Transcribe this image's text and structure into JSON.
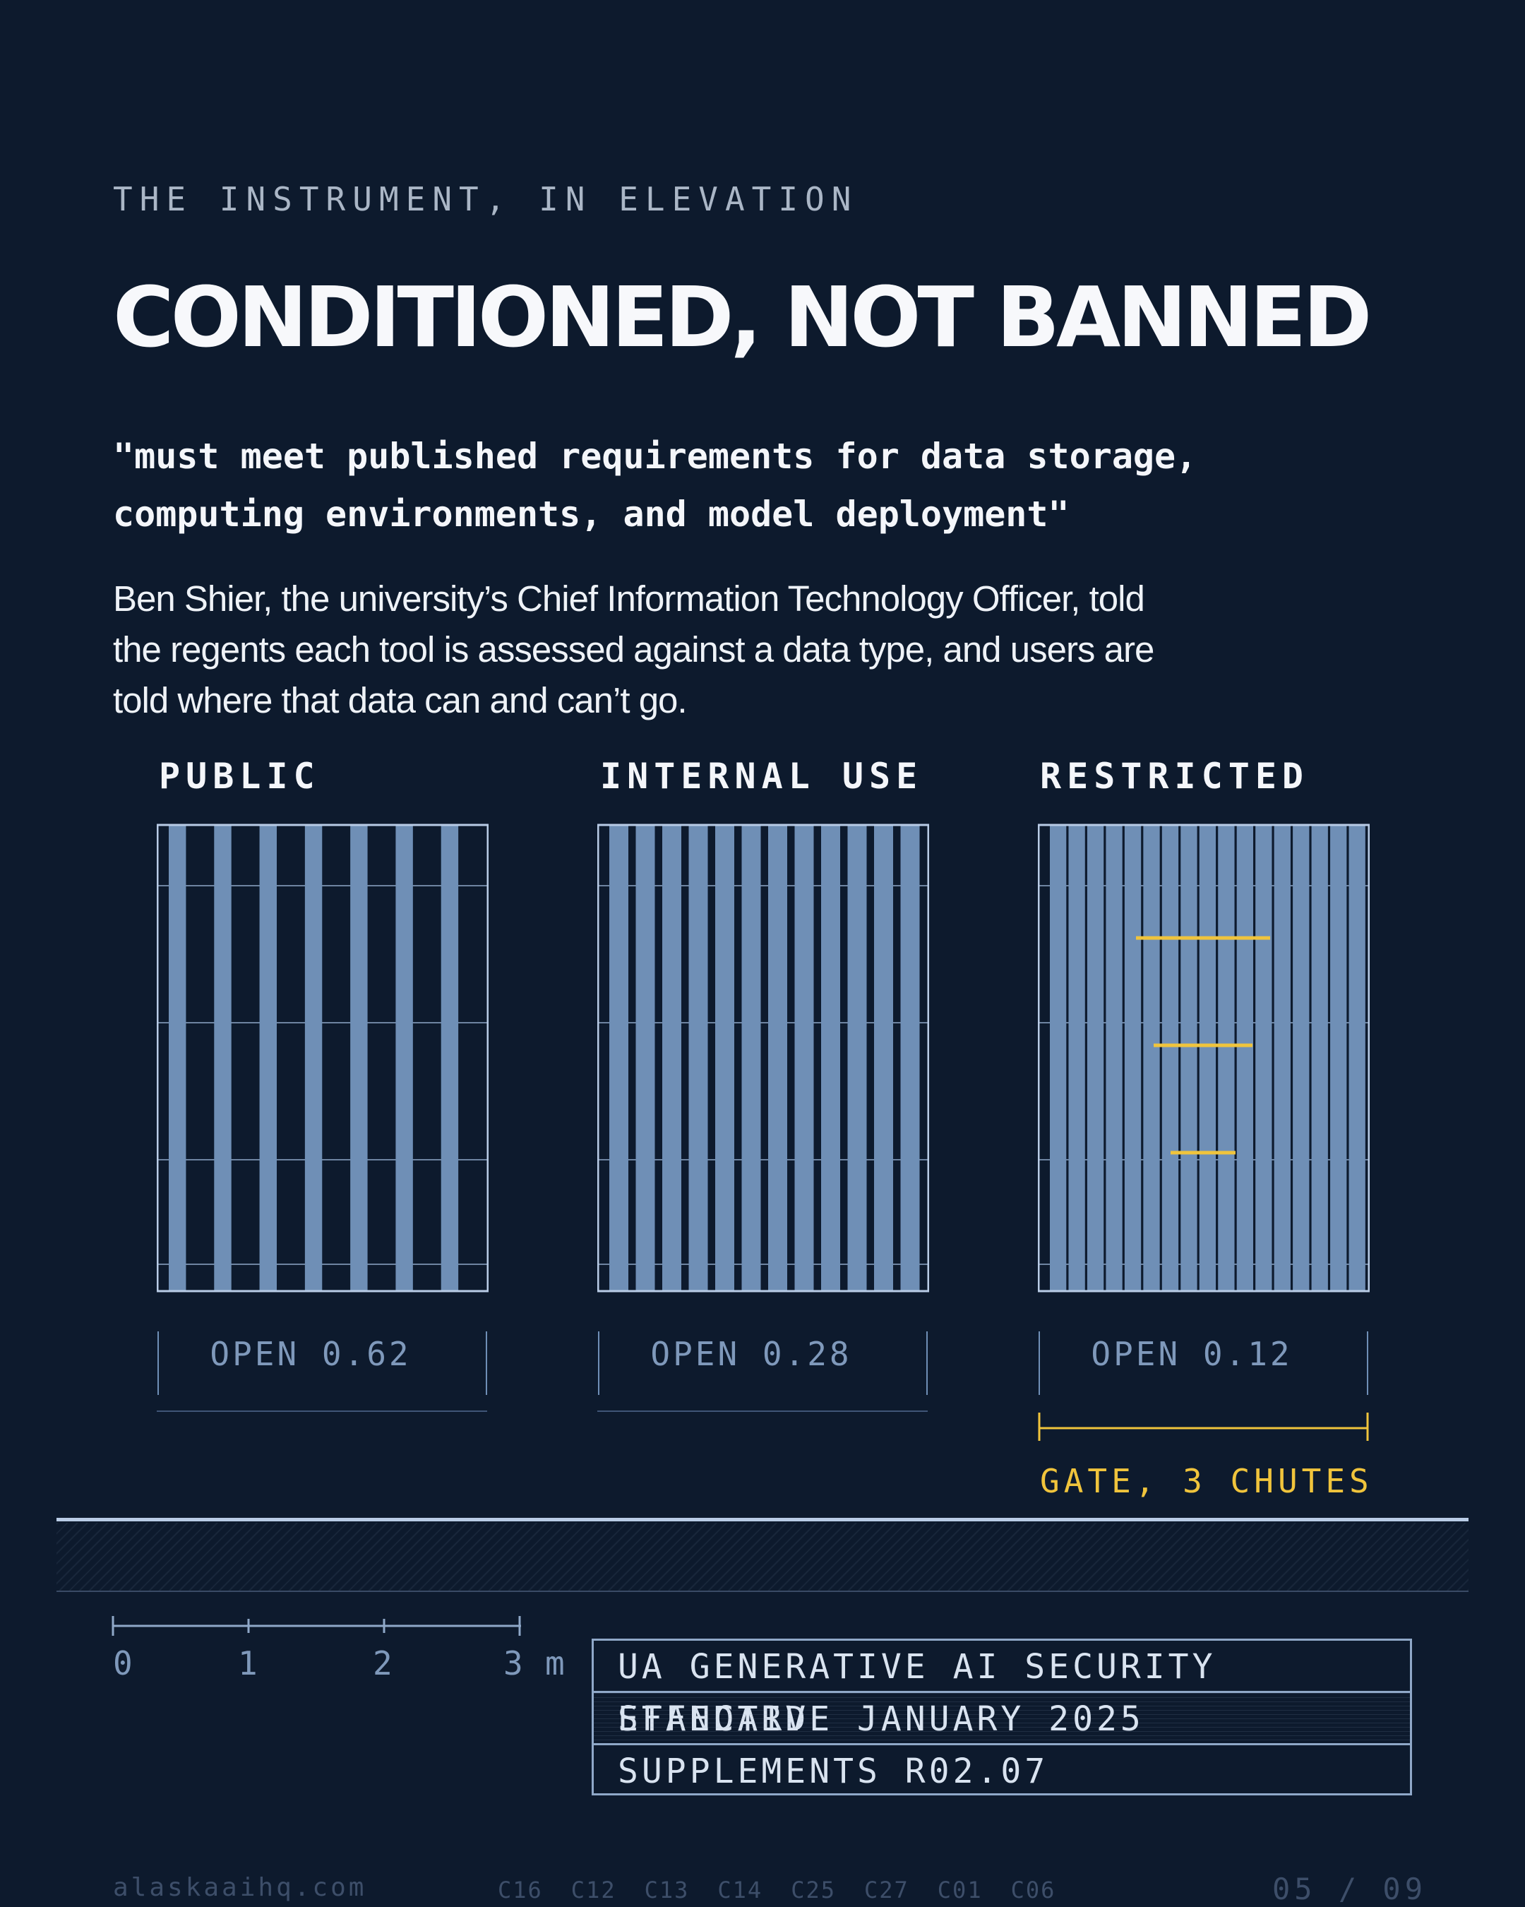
{
  "eyebrow": "THE INSTRUMENT, IN ELEVATION",
  "title": "CONDITIONED, NOT BANNED",
  "quote": "\"must meet published requirements for data storage,\ncomputing environments, and model deployment\"",
  "byline": "Ben Shier, the university’s Chief Information Technology Officer, told the regents each tool is assessed against a data type, and users are told where that data can and can’t go.",
  "panels": [
    {
      "label": "PUBLIC",
      "open_label": "OPEN 0.62",
      "openness": 0.62,
      "bars": 7
    },
    {
      "label": "INTERNAL USE",
      "open_label": "OPEN 0.28",
      "openness": 0.28,
      "bars": 12
    },
    {
      "label": "RESTRICTED",
      "open_label": "OPEN 0.12",
      "openness": 0.12,
      "bars": 17,
      "gate": "GATE, 3 CHUTES",
      "chutes": 3
    }
  ],
  "scale": {
    "ticks": [
      "0",
      "1",
      "2",
      "3"
    ],
    "unit": "m"
  },
  "standard": {
    "line1": "UA GENERATIVE AI SECURITY STANDARD",
    "line2": "EFFECTIVE JANUARY 2025",
    "line3": "SUPPLEMENTS R02.07"
  },
  "footer": {
    "site": "alaskaaihq.com",
    "codes": [
      "C16",
      "C12",
      "C13",
      "C14",
      "C25",
      "C27",
      "C01",
      "C06"
    ],
    "page": "05 / 09"
  },
  "colors": {
    "background": "#0d1a2d",
    "bar": "#6f8fb6",
    "frame": "#b9cce6",
    "gate": "#f0c43c",
    "muted": "#7f99bb"
  }
}
